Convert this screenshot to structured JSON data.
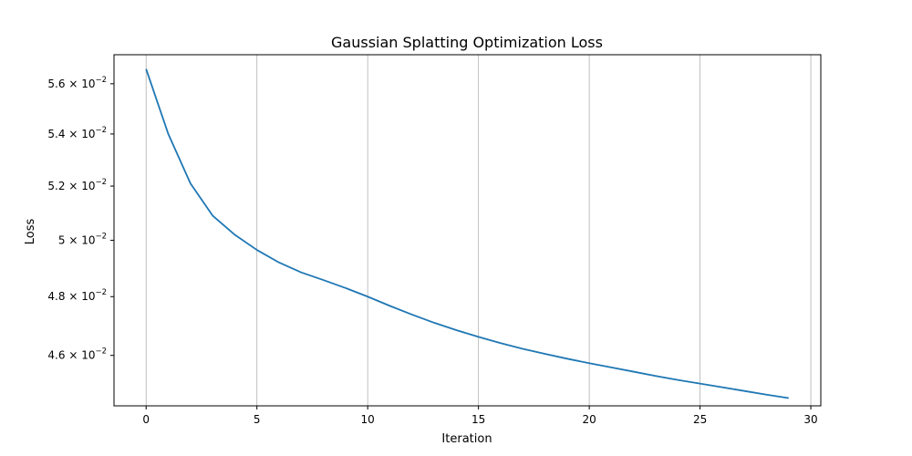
{
  "chart_data": {
    "type": "line",
    "title": "Gaussian Splatting Optimization Loss",
    "xlabel": "Iteration",
    "ylabel": "Loss",
    "xlim": [
      -1.45,
      30.45
    ],
    "ylim": [
      0.04435,
      0.05719
    ],
    "yscale": "log",
    "grid": "x-only",
    "x_ticks": [
      0,
      5,
      10,
      15,
      20,
      25,
      30
    ],
    "x_tick_labels": [
      "0",
      "5",
      "10",
      "15",
      "20",
      "25",
      "30"
    ],
    "y_ticks": [
      {
        "value": 0.046,
        "mantissa": "4.6",
        "base": "10",
        "exponent": "−2"
      },
      {
        "value": 0.048,
        "mantissa": "4.8",
        "base": "10",
        "exponent": "−2"
      },
      {
        "value": 0.05,
        "mantissa": "5",
        "base": "10",
        "exponent": "−2"
      },
      {
        "value": 0.052,
        "mantissa": "5.2",
        "base": "10",
        "exponent": "−2"
      },
      {
        "value": 0.054,
        "mantissa": "5.4",
        "base": "10",
        "exponent": "−2"
      },
      {
        "value": 0.056,
        "mantissa": "5.6",
        "base": "10",
        "exponent": "−2"
      }
    ],
    "series": [
      {
        "color": "#1f77b4",
        "x": [
          0,
          1,
          2,
          3,
          4,
          5,
          6,
          7,
          8,
          9,
          10,
          11,
          12,
          13,
          14,
          15,
          16,
          17,
          18,
          19,
          20,
          21,
          22,
          23,
          24,
          25,
          26,
          27,
          28,
          29
        ],
        "y": [
          0.0566,
          0.054,
          0.0521,
          0.0509,
          0.0502,
          0.04965,
          0.0492,
          0.04885,
          0.04858,
          0.0483,
          0.048,
          0.04768,
          0.04738,
          0.0471,
          0.04685,
          0.04662,
          0.04641,
          0.04622,
          0.04605,
          0.04589,
          0.04574,
          0.0456,
          0.04546,
          0.04532,
          0.04519,
          0.04507,
          0.04495,
          0.04483,
          0.04471,
          0.0446
        ]
      }
    ]
  }
}
